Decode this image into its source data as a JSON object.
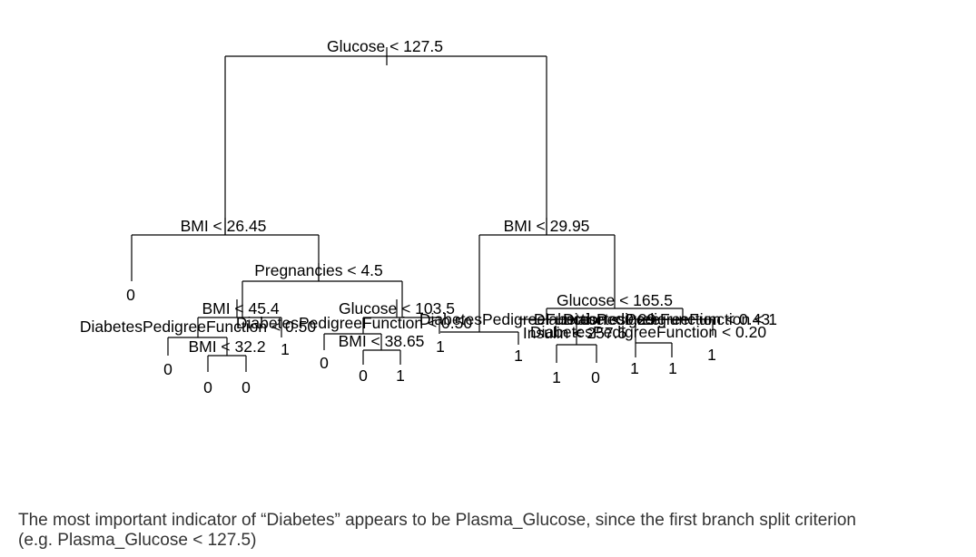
{
  "tree": {
    "splits": {
      "root": "Glucose < 127.5",
      "bmi_left": "BMI < 26.45",
      "bmi_right": "BMI < 29.95",
      "pregnancies": "Pregnancies < 4.5",
      "bmi_45": "BMI < 45.4",
      "glucose_103": "Glucose < 103.5",
      "glucose_165": "Glucose < 165.5",
      "dpf_a": "DiabetesPedigreeFunction < 0.50",
      "dpf_b": "DiabetesPedigreeFunction < 0.50",
      "dpf_c": "DiabetesPedigreeFunction < 0.29",
      "dpf_d": "DiabetesPedigreeFunction < 0.43",
      "dpf_e": "DiabetesPedigreeFunction < 1",
      "dpf_f": "DiabetesPedigreeFunction < 0.20",
      "bmi_32": "BMI < 32.2",
      "bmi_38": "BMI < 38.65",
      "insulin": "Insulin < 257.5"
    },
    "leaves": {
      "l1": "0",
      "l2": "0",
      "l3": "0",
      "l4": "0",
      "l5": "1",
      "l6": "0",
      "l7": "0",
      "l8": "1",
      "l9": "1",
      "l10": "1",
      "l11": "1",
      "l12": "0",
      "l13": "1",
      "l14": "1",
      "l15": "1"
    }
  },
  "caption": {
    "line1": "The most important indicator of “Diabetes” appears to be Plasma_Glucose, since the first branch split criterion",
    "line2": "(e.g. Plasma_Glucose < 127.5)"
  }
}
